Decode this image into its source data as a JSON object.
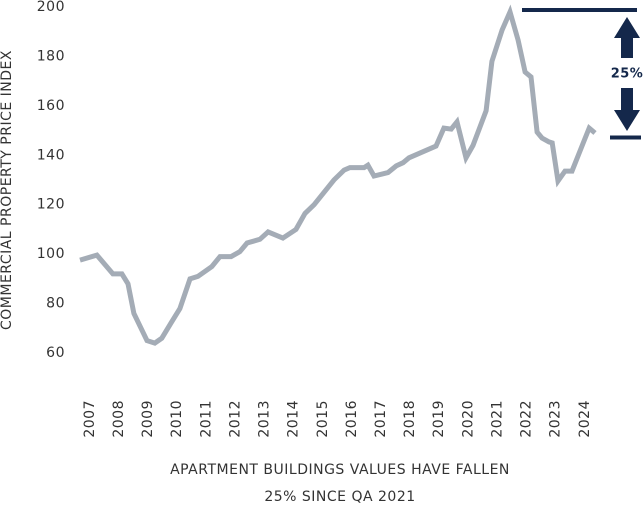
{
  "chart_data": {
    "type": "line",
    "y_label": "COMMERCIAL PROPERTY PRICE INDEX",
    "caption": [
      "APARTMENT BUILDINGS VALUES HAVE FALLEN",
      "25% SINCE QA 2021"
    ],
    "x": [
      2006.66,
      2007.24,
      2007.79,
      2008.1,
      2008.31,
      2008.51,
      2008.96,
      2009.23,
      2009.47,
      2009.78,
      2010.09,
      2010.44,
      2010.71,
      2011.19,
      2011.47,
      2011.85,
      2012.15,
      2012.4,
      2012.84,
      2013.12,
      2013.63,
      2014.08,
      2014.39,
      2014.7,
      2015.38,
      2015.73,
      2015.93,
      2016.42,
      2016.55,
      2016.76,
      2017.24,
      2017.52,
      2017.76,
      2017.96,
      2018.89,
      2019.16,
      2019.41,
      2019.61,
      2019.92,
      2020.16,
      2020.61,
      2020.81,
      2021.16,
      2021.43,
      2021.71,
      2021.95,
      2022.15,
      2022.36,
      2022.53,
      2022.77,
      2022.88,
      2023.08,
      2023.32,
      2023.56,
      2023.98,
      2024.15,
      2024.35
    ],
    "values": [
      97.6,
      99.6,
      92,
      92,
      88,
      76,
      65,
      64,
      66,
      72,
      78,
      90,
      91,
      95,
      99,
      99,
      101,
      104.5,
      106,
      109,
      106.5,
      110,
      116.5,
      120,
      130,
      134,
      135,
      135,
      136,
      131.6,
      133,
      135.7,
      137,
      139,
      143.7,
      151,
      150.6,
      153.5,
      139,
      144,
      158,
      178,
      190.7,
      198,
      186.6,
      173.7,
      171.7,
      149.4,
      147,
      145.4,
      145,
      129.6,
      133.6,
      133.6,
      146,
      151,
      149
    ],
    "color": "#a4acb6",
    "xlim": [
      2006.66,
      2024.35
    ],
    "xticks": [
      2007,
      2008,
      2009,
      2010,
      2011,
      2012,
      2013,
      2014,
      2015,
      2016,
      2017,
      2018,
      2019,
      2020,
      2021,
      2022,
      2023,
      2024
    ],
    "ylim": [
      60,
      200
    ],
    "yticks": [
      60,
      80,
      100,
      120,
      140,
      160,
      180,
      200
    ],
    "grid": false,
    "annotation": {
      "label": "25%",
      "from": 198.8,
      "to": 147.2,
      "color": "#14284b"
    }
  }
}
